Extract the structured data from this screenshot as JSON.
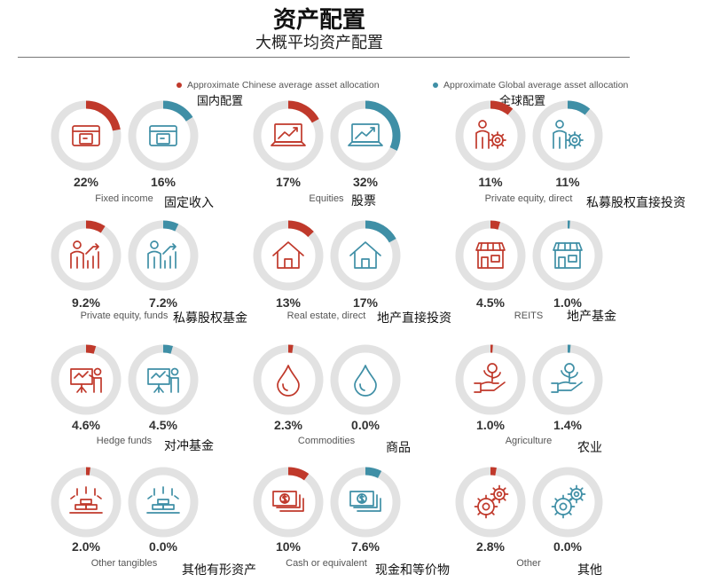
{
  "title": "资产配置",
  "subtitle": "大概平均资产配置",
  "legend": {
    "china": {
      "label": "Approximate Chinese average asset allocation",
      "label_zh": "国内配置",
      "color": "#c0392b"
    },
    "global": {
      "label": "Approximate Global average asset allocation",
      "label_zh": "全球配置",
      "color": "#3f8fa6"
    }
  },
  "colors": {
    "ring": "#e2e2e2",
    "china": "#c0392b",
    "global": "#3f8fa6"
  },
  "chart_data": {
    "type": "pie",
    "series": [
      {
        "name": "Approximate Chinese average asset allocation",
        "key": "china"
      },
      {
        "name": "Approximate Global average asset allocation",
        "key": "global"
      }
    ],
    "categories": [
      {
        "label": "Fixed income",
        "label_zh": "固定收入",
        "icon": "atm-card-icon",
        "china": 22,
        "global": 16,
        "china_text": "22%",
        "global_text": "16%"
      },
      {
        "label": "Equities",
        "label_zh": "股票",
        "icon": "laptop-chart-icon",
        "china": 17,
        "global": 32,
        "china_text": "17%",
        "global_text": "32%"
      },
      {
        "label": "Private equity, direct",
        "label_zh": "私募股权直接投资",
        "icon": "person-gear-icon",
        "china": 11,
        "global": 11,
        "china_text": "11%",
        "global_text": "11%"
      },
      {
        "label": "Private equity, funds",
        "label_zh": "私募股权基金",
        "icon": "person-bar-chart-icon",
        "china": 9.2,
        "global": 7.2,
        "china_text": "9.2%",
        "global_text": "7.2%"
      },
      {
        "label": "Real estate, direct",
        "label_zh": "地产直接投资",
        "icon": "house-icon",
        "china": 13,
        "global": 17,
        "china_text": "13%",
        "global_text": "17%"
      },
      {
        "label": "REITS",
        "label_zh": "地产基金",
        "icon": "storefront-icon",
        "china": 4.5,
        "global": 1.0,
        "china_text": "4.5%",
        "global_text": "1.0%"
      },
      {
        "label": "Hedge funds",
        "label_zh": "对冲基金",
        "icon": "presentation-board-icon",
        "china": 4.6,
        "global": 4.5,
        "china_text": "4.6%",
        "global_text": "4.5%"
      },
      {
        "label": "Commodities",
        "label_zh": "商品",
        "icon": "drop-icon",
        "china": 2.3,
        "global": 0.0,
        "china_text": "2.3%",
        "global_text": "0.0%"
      },
      {
        "label": "Agriculture",
        "label_zh": "农业",
        "icon": "hand-plant-icon",
        "china": 1.0,
        "global": 1.4,
        "china_text": "1.0%",
        "global_text": "1.4%"
      },
      {
        "label": "Other tangibles",
        "label_zh": "其他有形资产",
        "icon": "gold-bars-icon",
        "china": 2.0,
        "global": 0.0,
        "china_text": "2.0%",
        "global_text": "0.0%"
      },
      {
        "label": "Cash or equivalent",
        "label_zh": "现金和等价物",
        "icon": "cash-stack-icon",
        "china": 10,
        "global": 7.6,
        "china_text": "10%",
        "global_text": "7.6%"
      },
      {
        "label": "Other",
        "label_zh": "其他",
        "icon": "gears-icon",
        "china": 2.8,
        "global": 0.0,
        "china_text": "2.8%",
        "global_text": "0.0%"
      }
    ]
  }
}
